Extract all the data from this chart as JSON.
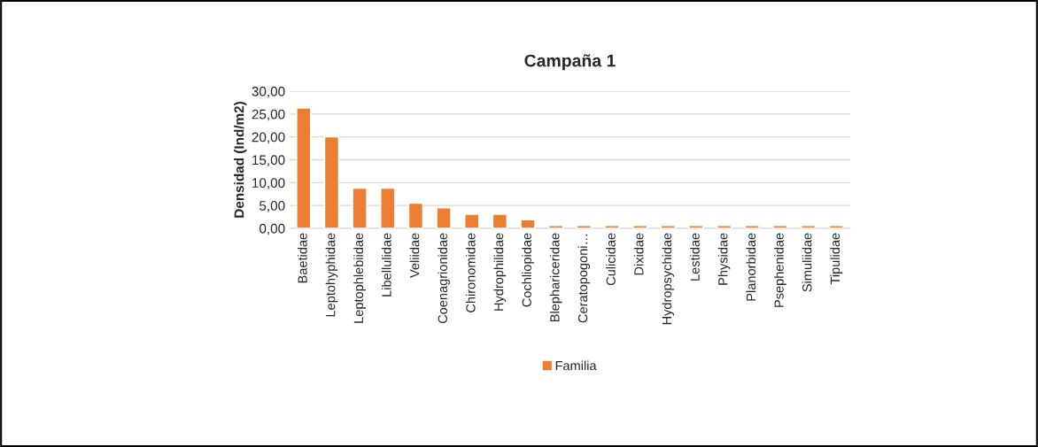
{
  "chart_data": {
    "type": "bar",
    "title": "Campaña 1",
    "ylabel": "Densidad (Ind/m2)",
    "categories": [
      "Baetidae",
      "Leptohyphidae",
      "Leptophlebiidae",
      "Libellulidae",
      "Veliidae",
      "Coenagrionidae",
      "Chironomidae",
      "Hydrophilidae",
      "Cochliopidae",
      "Blephariceridae",
      "Ceratopogoni…",
      "Culicidae",
      "Dixidae",
      "Hydropsychidae",
      "Lestidae",
      "Physidae",
      "Planorbidae",
      "Psephenidae",
      "Simuliidae",
      "Tipulidae"
    ],
    "series": [
      {
        "name": "Familia",
        "color": "#ed7d31",
        "values": [
          26.3,
          20.0,
          8.8,
          8.8,
          5.5,
          4.5,
          3.1,
          3.1,
          1.9,
          0.6,
          0.6,
          0.6,
          0.6,
          0.6,
          0.6,
          0.6,
          0.6,
          0.6,
          0.6,
          0.6
        ]
      }
    ],
    "ylim": [
      0,
      30
    ],
    "yticks": [
      {
        "value": 0,
        "label": "0,00"
      },
      {
        "value": 5,
        "label": "5,00"
      },
      {
        "value": 10,
        "label": "10,00"
      },
      {
        "value": 15,
        "label": "15,00"
      },
      {
        "value": 20,
        "label": "20,00"
      },
      {
        "value": 25,
        "label": "25,00"
      },
      {
        "value": 30,
        "label": "30,00"
      }
    ],
    "grid": "y",
    "legend": "bottom"
  }
}
